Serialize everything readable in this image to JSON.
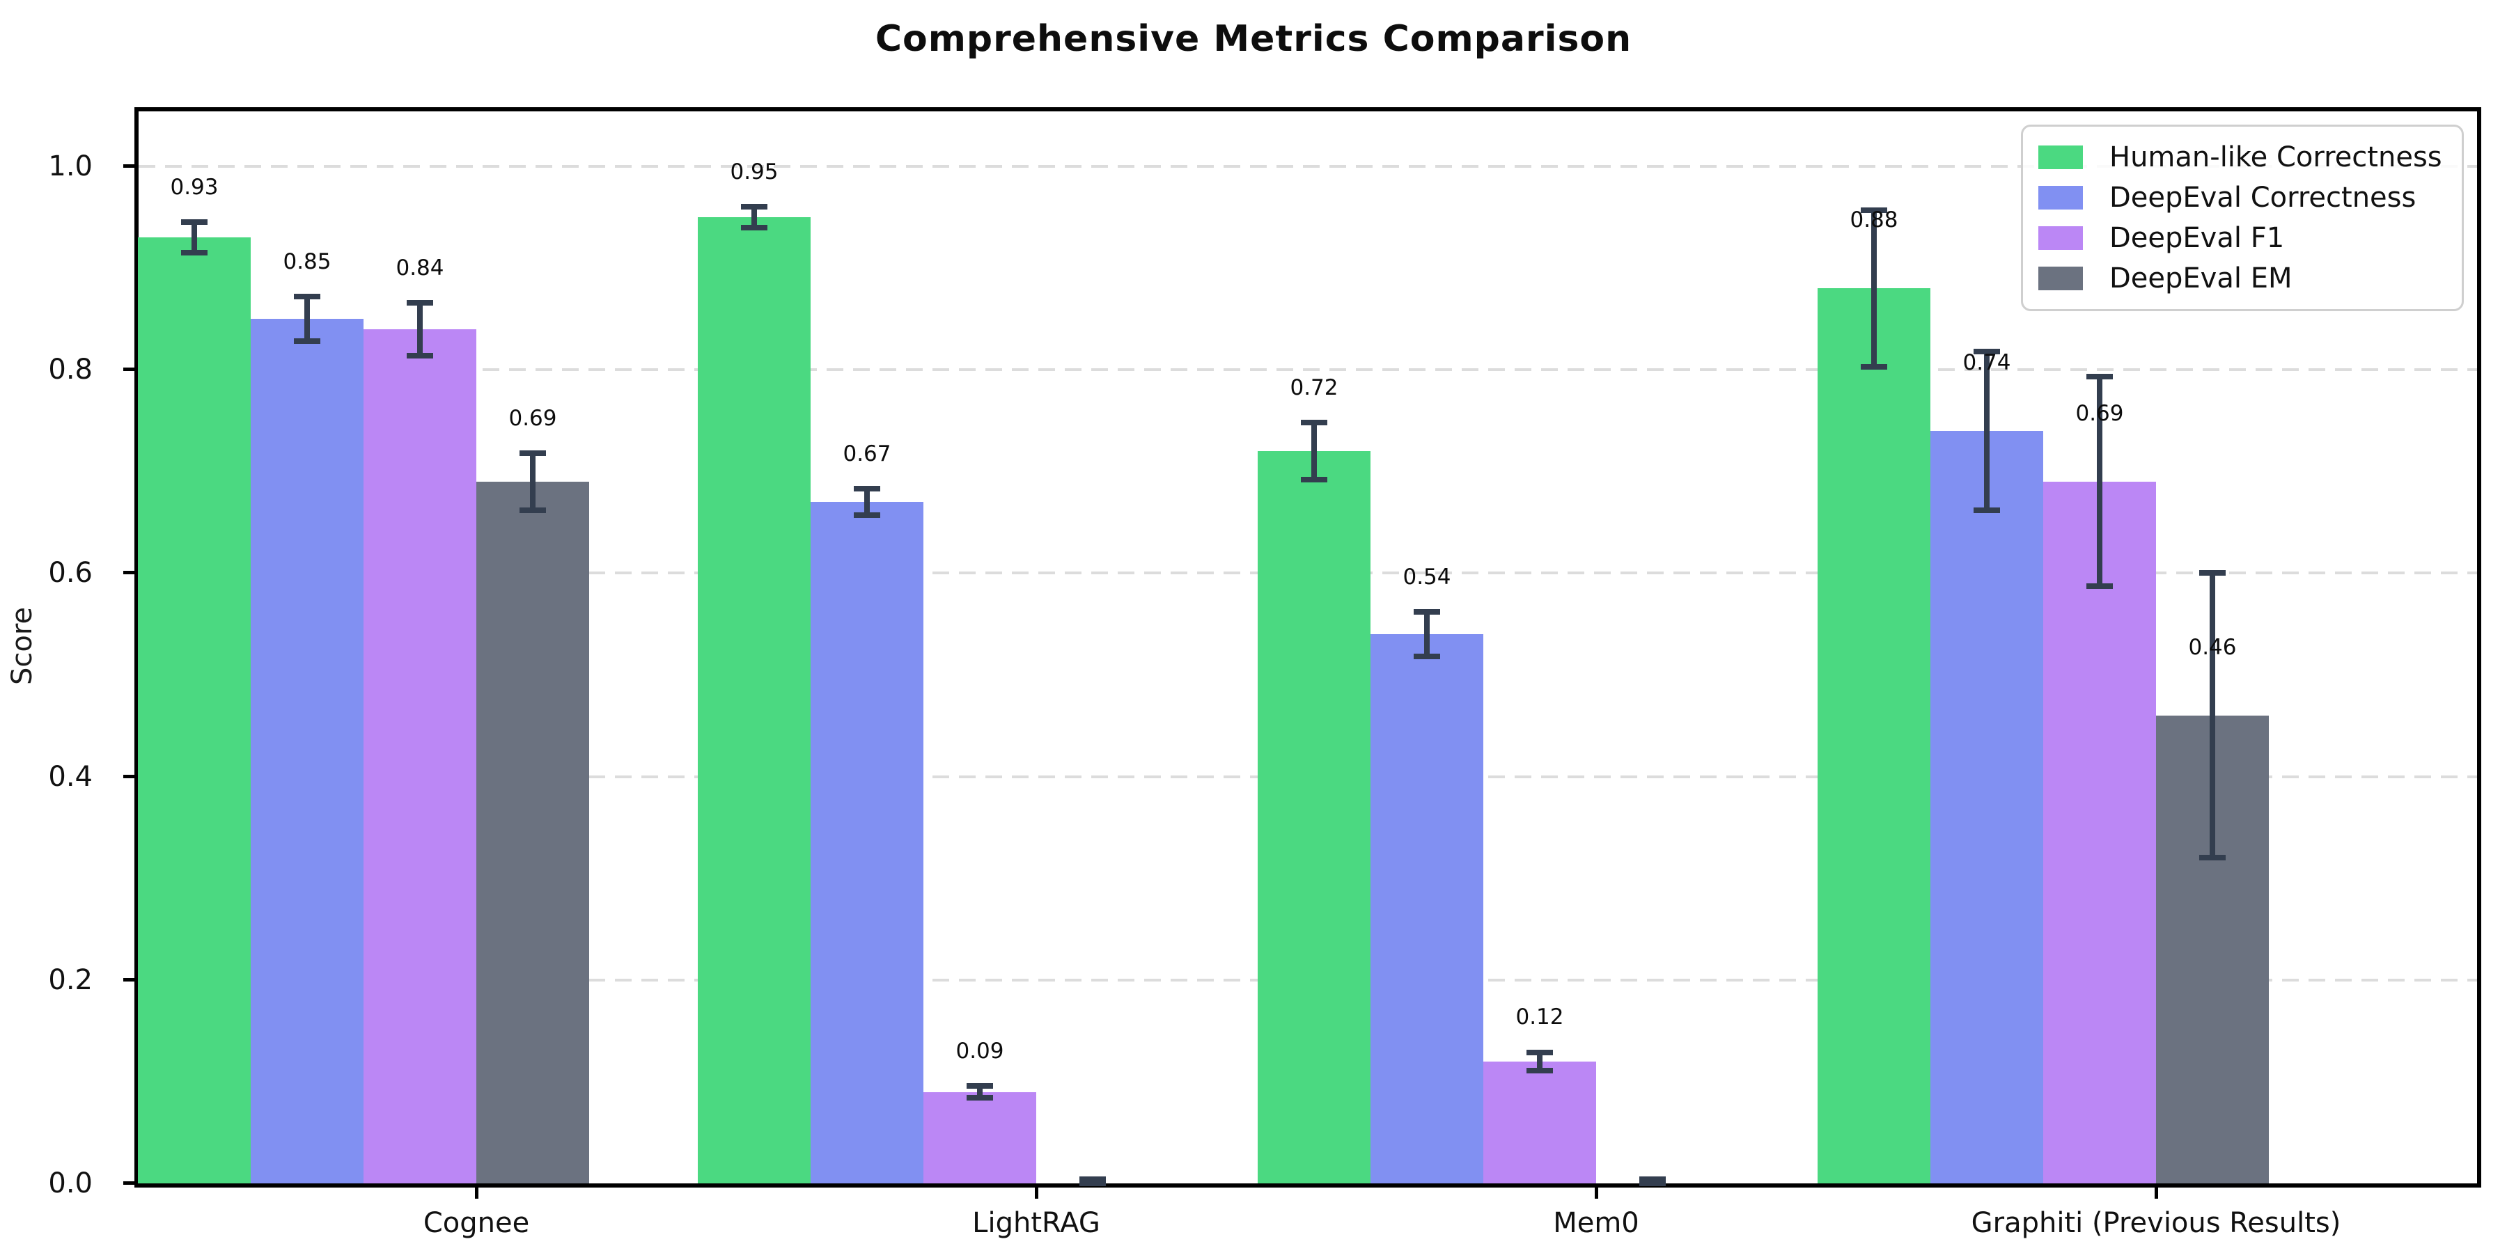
{
  "title": "Comprehensive Metrics Comparison",
  "ylabel": "Score",
  "chart_data": {
    "type": "bar",
    "title": "Comprehensive Metrics Comparison",
    "xlabel": "",
    "ylabel": "Score",
    "categories": [
      "Cognee",
      "LightRAG",
      "Mem0",
      "Graphiti (Previous Results)"
    ],
    "series": [
      {
        "name": "Human-like Correctness",
        "color": "#4bd981",
        "values": [
          0.93,
          0.95,
          0.72,
          0.88
        ],
        "errors": [
          0.015,
          0.01,
          0.028,
          0.077
        ],
        "labels": [
          "0.93",
          "0.95",
          "0.72",
          "0.88"
        ]
      },
      {
        "name": "DeepEval Correctness",
        "color": "#8190f2",
        "values": [
          0.85,
          0.67,
          0.54,
          0.74
        ],
        "errors": [
          0.022,
          0.013,
          0.022,
          0.078
        ],
        "labels": [
          "0.85",
          "0.67",
          "0.54",
          "0.74"
        ]
      },
      {
        "name": "DeepEval F1",
        "color": "#bb87f5",
        "values": [
          0.84,
          0.09,
          0.12,
          0.69
        ],
        "errors": [
          0.026,
          0.006,
          0.009,
          0.103
        ],
        "labels": [
          "0.84",
          "0.09",
          "0.12",
          "0.69"
        ]
      },
      {
        "name": "DeepEval EM",
        "color": "#6b7280",
        "values": [
          0.69,
          0.0,
          0.0,
          0.46
        ],
        "errors": [
          0.028,
          0.004,
          0.004,
          0.14
        ],
        "labels": [
          "0.69",
          "",
          "",
          "0.46"
        ]
      }
    ],
    "yticks": [
      0.0,
      0.2,
      0.4,
      0.6,
      0.8,
      1.0
    ],
    "ytick_labels": [
      "0.0",
      "0.2",
      "0.4",
      "0.6",
      "0.8",
      "1.0"
    ],
    "ylim": [
      0,
      1.054
    ],
    "grid": "horizontal-dashed",
    "legend_position": "upper right",
    "error_bar_color": "#333e4f",
    "background_color": "#ffffff"
  }
}
